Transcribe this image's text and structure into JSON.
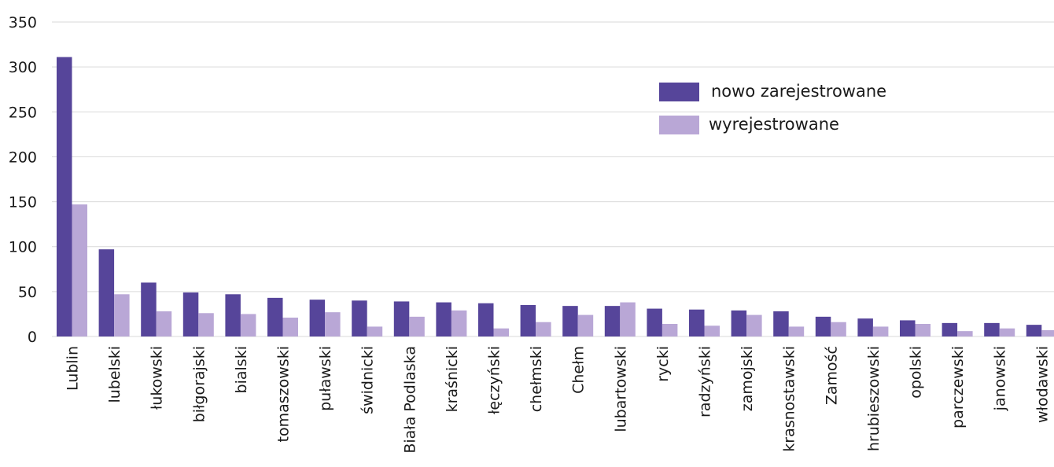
{
  "chart_data": {
    "type": "bar",
    "categories": [
      "Lublin",
      "lubelski",
      "łukowski",
      "biłgorajski",
      "bialski",
      "tomaszowski",
      "puławski",
      "świdnicki",
      "Biała Podlaska",
      "kraśnicki",
      "łęczyński",
      "chełmski",
      "Chełm",
      "lubartowski",
      "rycki",
      "radzyński",
      "zamojski",
      "krasnostawski",
      "Zamość",
      "hrubieszowski",
      "opolski",
      "parczewski",
      "janowski",
      "włodawski"
    ],
    "series": [
      {
        "name": "nowo zarejestrowane",
        "color": "#56459a",
        "values": [
          311,
          97,
          60,
          49,
          47,
          43,
          41,
          40,
          39,
          38,
          37,
          35,
          34,
          34,
          31,
          30,
          29,
          28,
          22,
          20,
          18,
          15,
          15,
          13
        ]
      },
      {
        "name": "wyrejestrowane",
        "color": "#b9a7d6",
        "values": [
          147,
          47,
          28,
          26,
          25,
          21,
          27,
          11,
          22,
          29,
          9,
          16,
          24,
          38,
          14,
          12,
          24,
          11,
          16,
          11,
          14,
          6,
          9,
          7
        ]
      }
    ],
    "yticks": [
      0,
      50,
      100,
      150,
      200,
      250,
      300,
      350
    ],
    "ylim": [
      0,
      350
    ],
    "grid": true,
    "legend": "top-right",
    "xlabel": "",
    "ylabel": ""
  }
}
